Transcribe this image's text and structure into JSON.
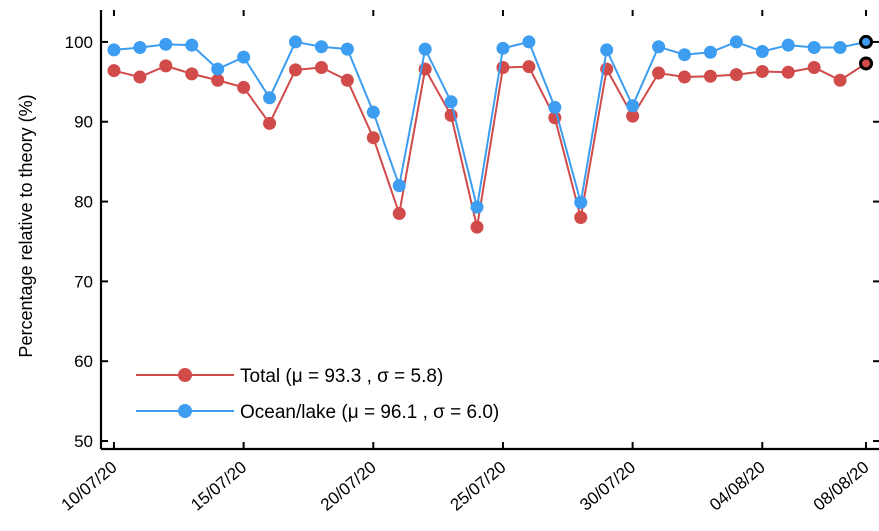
{
  "chart_data": {
    "type": "line",
    "title": "",
    "xlabel": "",
    "ylabel": "Percentage relative to theory (%)",
    "ylim": [
      49,
      104
    ],
    "y_ticks": [
      50,
      60,
      70,
      80,
      90,
      100
    ],
    "x_tick_labels": [
      "10/07/20",
      "15/07/20",
      "20/07/20",
      "25/07/20",
      "30/07/20",
      "04/08/20",
      "08/08/20"
    ],
    "x_tick_days": [
      0,
      5,
      10,
      15,
      20,
      25,
      29
    ],
    "x_range_days": [
      -0.5,
      29.5
    ],
    "x_days": [
      0,
      1,
      2,
      3,
      4,
      5,
      6,
      7,
      8,
      9,
      10,
      11,
      12,
      13,
      14,
      15,
      16,
      17,
      18,
      19,
      20,
      21,
      22,
      23,
      24,
      25,
      26,
      27,
      28,
      29
    ],
    "grid": false,
    "legend_position": "bottom-left",
    "series": [
      {
        "name": "Total (μ = 93.3 , σ = 5.8)",
        "color": "#d14b4b",
        "values": [
          96.4,
          95.6,
          97.0,
          96.0,
          95.2,
          94.3,
          89.8,
          96.5,
          96.8,
          95.2,
          88.0,
          78.5,
          96.6,
          90.8,
          76.8,
          96.8,
          96.9,
          90.5,
          78.0,
          96.6,
          90.7,
          96.1,
          95.6,
          95.7,
          95.9,
          96.3,
          96.2,
          96.8,
          95.2,
          97.3
        ]
      },
      {
        "name": "Ocean/lake (μ = 96.1 , σ = 6.0)",
        "color": "#3d9df0",
        "values": [
          99.0,
          99.3,
          99.7,
          99.6,
          96.6,
          98.1,
          93.0,
          100.0,
          99.4,
          99.1,
          91.2,
          82.0,
          99.1,
          92.5,
          79.3,
          99.2,
          100.0,
          91.8,
          79.9,
          99.0,
          92.0,
          99.4,
          98.4,
          98.7,
          100.0,
          98.8,
          99.6,
          99.3,
          99.3,
          100.0
        ]
      }
    ]
  }
}
